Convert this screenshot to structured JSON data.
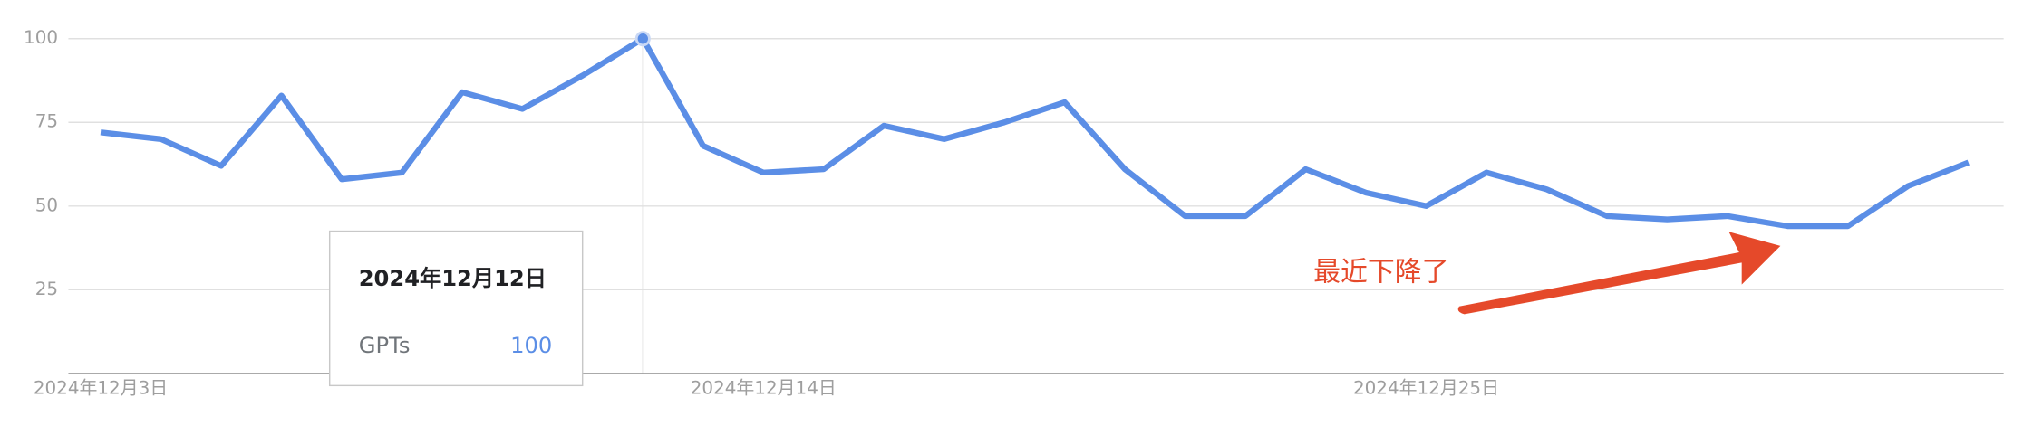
{
  "chart_data": {
    "type": "line",
    "categories": [
      "2024年12月3日",
      null,
      null,
      null,
      null,
      null,
      null,
      null,
      null,
      null,
      null,
      "2024年12月14日",
      null,
      null,
      null,
      null,
      null,
      null,
      null,
      null,
      null,
      null,
      "2024年12月25日",
      null,
      null,
      null,
      null,
      null,
      null,
      null,
      null,
      null
    ],
    "series": [
      {
        "name": "GPTs",
        "color": "#5b8ee6",
        "values": [
          72,
          70,
          62,
          83,
          58,
          60,
          84,
          79,
          89,
          100,
          68,
          60,
          61,
          74,
          70,
          75,
          81,
          61,
          47,
          47,
          61,
          54,
          50,
          60,
          55,
          47,
          46,
          47,
          44,
          44,
          56,
          63
        ]
      }
    ],
    "ylim": [
      0,
      100
    ],
    "yticks": [
      25,
      50,
      75,
      100
    ],
    "grid": true,
    "tooltip_date": "2024年12月12日",
    "annotation": "最近下降了",
    "annotation_color": "#e5492a"
  }
}
